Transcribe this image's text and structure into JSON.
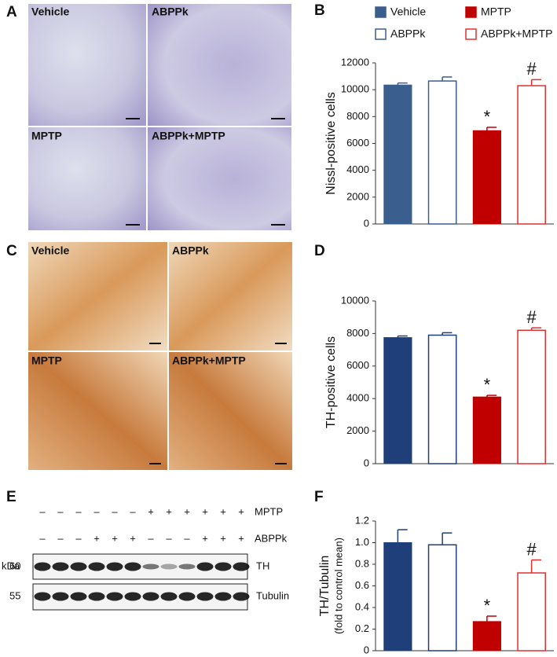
{
  "panel_letters": [
    "A",
    "B",
    "C",
    "D",
    "E",
    "F"
  ],
  "micrographs": [
    {
      "labels": [
        "Vehicle",
        "ABPPk",
        "MPTP",
        "ABPPk+MPTP"
      ]
    },
    {
      "labels": [
        "Vehicle",
        "ABPPk",
        "MPTP",
        "ABPPk+MPTP"
      ]
    }
  ],
  "blot": {
    "treatments": [
      {
        "name": "MPTP",
        "signs": [
          "–",
          "–",
          "–",
          "–",
          "–",
          "–",
          "+",
          "+",
          "+",
          "+",
          "+",
          "+"
        ]
      },
      {
        "name": "ABPPk",
        "signs": [
          "–",
          "–",
          "–",
          "+",
          "+",
          "+",
          "–",
          "–",
          "–",
          "+",
          "+",
          "+"
        ]
      }
    ],
    "unit": "kDa",
    "bands": [
      {
        "marker": "60",
        "name": "TH"
      },
      {
        "marker": "55",
        "name": "Tubulin"
      }
    ]
  },
  "chart_data": [
    {
      "type": "bar",
      "ylabel": "Nissl-positive cells",
      "legend": "top",
      "categories": [
        null
      ],
      "ylim": [
        0,
        12000
      ],
      "yticks": [
        0,
        2000,
        4000,
        6000,
        8000,
        10000,
        12000
      ],
      "series": [
        {
          "name": "Vehicle",
          "color": "#3a5f8e",
          "fill": "solid",
          "values": [
            10350
          ],
          "errors": [
            150
          ]
        },
        {
          "name": "ABPPk",
          "color": "#3a5f8e",
          "fill": "open",
          "values": [
            10650
          ],
          "errors": [
            300
          ]
        },
        {
          "name": "MPTP",
          "color": "#c00000",
          "fill": "solid",
          "values": [
            6950
          ],
          "errors": [
            250
          ],
          "annotation": "*"
        },
        {
          "name": "ABPPk+MPTP",
          "color": "#e03030",
          "fill": "open",
          "values": [
            10300
          ],
          "errors": [
            450
          ],
          "annotation": "#"
        }
      ]
    },
    {
      "type": "bar",
      "ylabel": "TH-positive cells",
      "categories": [
        null
      ],
      "ylim": [
        0,
        10000
      ],
      "yticks": [
        0,
        2000,
        4000,
        6000,
        8000,
        10000
      ],
      "series": [
        {
          "color": "#1f3f7a",
          "fill": "solid",
          "values": [
            7750
          ],
          "errors": [
            100
          ]
        },
        {
          "color": "#1f3f7a",
          "fill": "open",
          "values": [
            7900
          ],
          "errors": [
            150
          ]
        },
        {
          "color": "#c00000",
          "fill": "solid",
          "values": [
            4100
          ],
          "errors": [
            100
          ],
          "annotation": "*"
        },
        {
          "color": "#e03030",
          "fill": "open",
          "values": [
            8200
          ],
          "errors": [
            150
          ],
          "annotation": "#"
        }
      ]
    },
    {
      "type": "bar",
      "ylabel": "TH/Tubulin",
      "ylabel_sub": "(fold to control mean)",
      "categories": [
        null
      ],
      "ylim": [
        0,
        1.2
      ],
      "yticks": [
        0,
        0.2,
        0.4,
        0.6,
        0.8,
        {
          "value": 1,
          "label": "1.0"
        },
        1.2
      ],
      "series": [
        {
          "color": "#1f3f7a",
          "fill": "solid",
          "values": [
            1.0
          ],
          "errors": [
            0.12
          ]
        },
        {
          "color": "#1f3f7a",
          "fill": "open",
          "values": [
            0.98
          ],
          "errors": [
            0.11
          ]
        },
        {
          "color": "#c00000",
          "fill": "solid",
          "values": [
            0.27
          ],
          "errors": [
            0.05
          ],
          "annotation": "*"
        },
        {
          "color": "#e03030",
          "fill": "open",
          "values": [
            0.72
          ],
          "errors": [
            0.12
          ],
          "annotation": "#"
        }
      ]
    }
  ]
}
